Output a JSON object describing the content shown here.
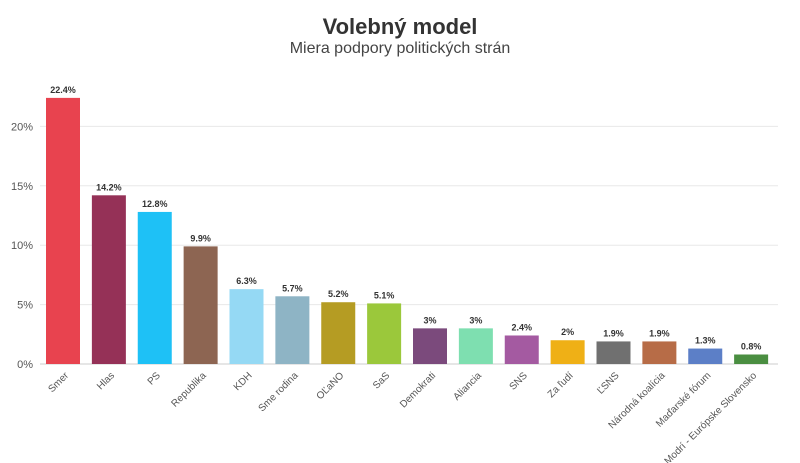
{
  "chart_data": {
    "type": "bar",
    "title": "Volebný model",
    "subtitle": "Miera podpory politických strán",
    "xlabel": "",
    "ylabel": "",
    "ylim": [
      0,
      25
    ],
    "yticks": [
      "0%",
      "5%",
      "10%",
      "15%",
      "20%"
    ],
    "grid": true,
    "categories": [
      "Smer",
      "Hlas",
      "PS",
      "Republika",
      "KDH",
      "Sme rodina",
      "OĽaNO",
      "SaS",
      "Demokrati",
      "Aliancia",
      "SNS",
      "Za ľudí",
      "ĽSNS",
      "Národná koalícia",
      "Maďarské fórum",
      "Modrí - Európske Slovensko"
    ],
    "values": [
      22.4,
      14.2,
      12.8,
      9.9,
      6.3,
      5.7,
      5.2,
      5.1,
      3,
      3,
      2.4,
      2,
      1.9,
      1.9,
      1.3,
      0.8
    ],
    "value_labels": [
      "22.4%",
      "14.2%",
      "12.8%",
      "9.9%",
      "6.3%",
      "5.7%",
      "5.2%",
      "5.1%",
      "3%",
      "3%",
      "2.4%",
      "2%",
      "1.9%",
      "1.9%",
      "1.3%",
      "0.8%"
    ],
    "colors": [
      "#e8434f",
      "#953157",
      "#1ec1f6",
      "#8d6552",
      "#95d9f4",
      "#8eb4c5",
      "#b59c23",
      "#9bc83b",
      "#7b4a7c",
      "#7edfb0",
      "#a45aa1",
      "#efb016",
      "#707070",
      "#b76c47",
      "#5c7fc7",
      "#4a8e41"
    ]
  }
}
